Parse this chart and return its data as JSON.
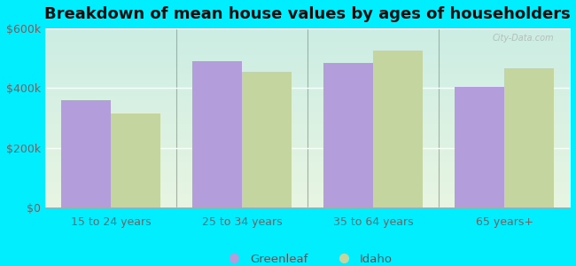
{
  "title": "Breakdown of mean house values by ages of householders",
  "categories": [
    "15 to 24 years",
    "25 to 34 years",
    "35 to 64 years",
    "65 years+"
  ],
  "greenleaf_values": [
    360000,
    490000,
    485000,
    405000
  ],
  "idaho_values": [
    315000,
    455000,
    525000,
    465000
  ],
  "bar_color_greenleaf": "#b39ddb",
  "bar_color_idaho": "#c5d5a0",
  "ylim": [
    0,
    600000
  ],
  "yticks": [
    0,
    200000,
    400000,
    600000
  ],
  "ytick_labels": [
    "$0",
    "$200k",
    "$400k",
    "$600k"
  ],
  "background_color": "#00eeff",
  "legend_labels": [
    "Greenleaf",
    "Idaho"
  ],
  "title_fontsize": 13,
  "tick_fontsize": 9,
  "bar_width": 0.38,
  "watermark": "City-Data.com"
}
